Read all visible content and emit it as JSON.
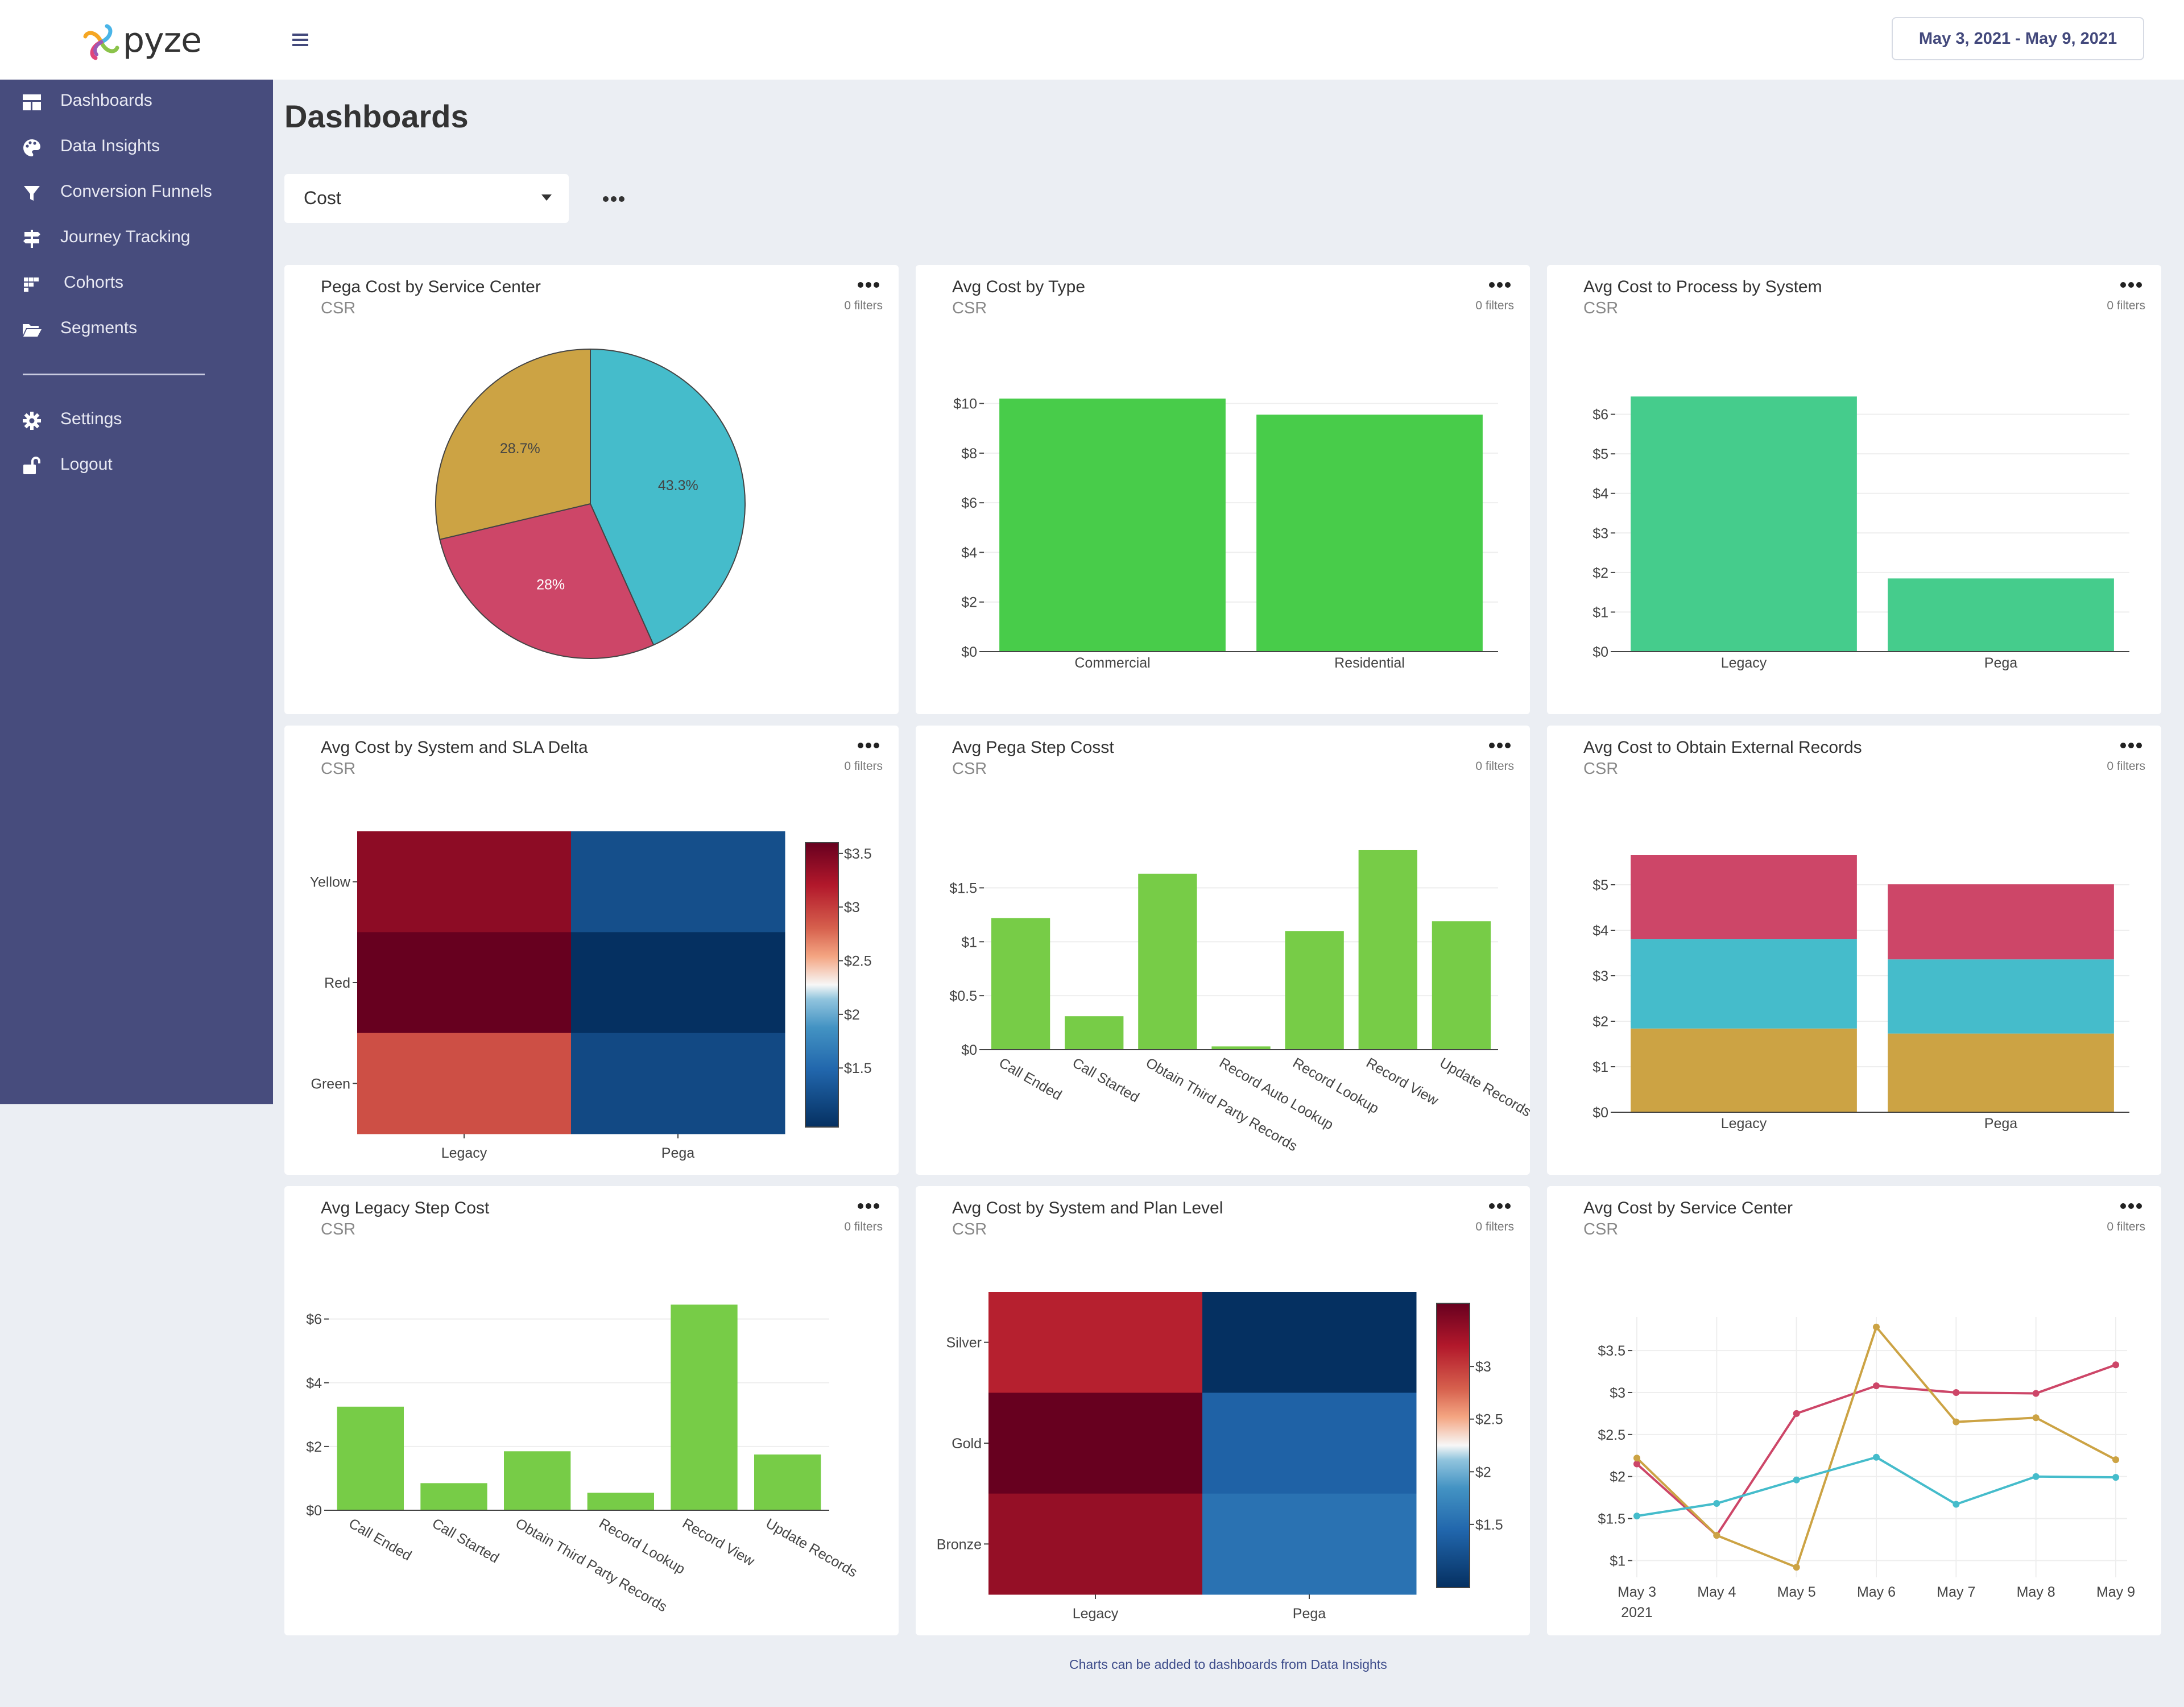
{
  "app": {
    "logo_text": "pyze"
  },
  "sidebar": {
    "items": [
      {
        "label": "Dashboards",
        "icon": "dashboard-icon"
      },
      {
        "label": "Data Insights",
        "icon": "palette-icon"
      },
      {
        "label": "Conversion Funnels",
        "icon": "filter-icon"
      },
      {
        "label": "Journey Tracking",
        "icon": "signpost-icon"
      },
      {
        "label": "Cohorts",
        "icon": "cohorts-icon"
      },
      {
        "label": "Segments",
        "icon": "folder-open-icon"
      }
    ],
    "bottom_items": [
      {
        "label": "Settings",
        "icon": "gear-icon"
      },
      {
        "label": "Logout",
        "icon": "unlock-icon"
      }
    ]
  },
  "header": {
    "date_range": "May 3, 2021 - May 9, 2021"
  },
  "main": {
    "title": "Dashboards",
    "dashboard_select": {
      "value": "Cost"
    }
  },
  "cards": [
    {
      "title": "Pega Cost by Service Center",
      "subtitle": "CSR",
      "filters": "0 filters"
    },
    {
      "title": "Avg Cost by Type",
      "subtitle": "CSR",
      "filters": "0 filters"
    },
    {
      "title": "Avg Cost to Process by System",
      "subtitle": "CSR",
      "filters": "0 filters"
    },
    {
      "title": "Avg Cost by System and SLA Delta",
      "subtitle": "CSR",
      "filters": "0 filters"
    },
    {
      "title": "Avg Pega Step Cosst",
      "subtitle": "CSR",
      "filters": "0 filters"
    },
    {
      "title": "Avg Cost to Obtain External Records",
      "subtitle": "CSR",
      "filters": "0 filters"
    },
    {
      "title": "Avg Legacy Step Cost",
      "subtitle": "CSR",
      "filters": "0 filters"
    },
    {
      "title": "Avg Cost by System and Plan Level",
      "subtitle": "CSR",
      "filters": "0 filters"
    },
    {
      "title": "Avg Cost by Service Center",
      "subtitle": "CSR",
      "filters": "0 filters"
    }
  ],
  "footer_note": "Charts can be added to dashboards from Data Insights",
  "colors": {
    "sidebar": "#474c7d",
    "accent": "#43497c",
    "green": "#48cc4a",
    "teal_green": "#45cc8c",
    "light_green": "#77cc47",
    "pie_teal": "#45bccb",
    "pie_red": "#cd4668",
    "pie_gold": "#cca344"
  },
  "chart_data": [
    {
      "type": "pie",
      "slices": [
        {
          "label": "43.3%",
          "value": 43.3,
          "color": "#45bccb"
        },
        {
          "label": "28%",
          "value": 28.0,
          "color": "#cd4668"
        },
        {
          "label": "28.7%",
          "value": 28.7,
          "color": "#cca344"
        }
      ]
    },
    {
      "type": "bar",
      "categories": [
        "Commercial",
        "Residential"
      ],
      "values": [
        10.2,
        9.55
      ],
      "ylim": [
        0,
        11
      ],
      "yticks": [
        0,
        2,
        4,
        6,
        8,
        10
      ],
      "ytick_labels": [
        "$0",
        "$2",
        "$4",
        "$6",
        "$8",
        "$10"
      ],
      "color": "#48cc4a"
    },
    {
      "type": "bar",
      "categories": [
        "Legacy",
        "Pega"
      ],
      "values": [
        6.45,
        1.85
      ],
      "ylim": [
        0,
        6.9
      ],
      "yticks": [
        0,
        1,
        2,
        3,
        4,
        5,
        6
      ],
      "ytick_labels": [
        "$0",
        "$1",
        "$2",
        "$3",
        "$4",
        "$5",
        "$6"
      ],
      "color": "#45cc8c"
    },
    {
      "type": "heatmap",
      "x": [
        "Legacy",
        "Pega"
      ],
      "y": [
        "Yellow",
        "Red",
        "Green"
      ],
      "z": [
        [
          3.4,
          1.25
        ],
        [
          3.6,
          0.95
        ],
        [
          2.9,
          1.2
        ]
      ],
      "zmin": 0.95,
      "zmax": 3.6,
      "colorbar_ticks": [
        1.5,
        2,
        2.5,
        3,
        3.5
      ],
      "colorbar_labels": [
        "$1.5",
        "$2",
        "$2.5",
        "$3",
        "$3.5"
      ]
    },
    {
      "type": "bar",
      "categories": [
        "Call Ended",
        "Call Started",
        "Obtain Third Party Records",
        "Record Auto Lookup",
        "Record Lookup",
        "Record View",
        "Update Records"
      ],
      "values": [
        1.22,
        0.31,
        1.63,
        0.03,
        1.1,
        1.85,
        1.19
      ],
      "ylim": [
        0,
        1.95
      ],
      "yticks": [
        0,
        0.5,
        1,
        1.5
      ],
      "ytick_labels": [
        "$0",
        "$0.5",
        "$1",
        "$1.5"
      ],
      "color": "#77cc47"
    },
    {
      "type": "bar",
      "stacked": true,
      "categories": [
        "Legacy",
        "Pega"
      ],
      "series": [
        {
          "values": [
            1.84,
            1.73
          ],
          "color": "#cca344"
        },
        {
          "values": [
            1.97,
            1.63
          ],
          "color": "#45bccb"
        },
        {
          "values": [
            1.84,
            1.65
          ],
          "color": "#cd4668"
        }
      ],
      "ylim": [
        0,
        6
      ],
      "yticks": [
        0,
        1,
        2,
        3,
        4,
        5
      ],
      "ytick_labels": [
        "$0",
        "$1",
        "$2",
        "$3",
        "$4",
        "$5"
      ]
    },
    {
      "type": "bar",
      "categories": [
        "Call Ended",
        "Call Started",
        "Obtain Third Party Records",
        "Record Lookup",
        "Record View",
        "Update Records"
      ],
      "values": [
        3.25,
        0.85,
        1.85,
        0.55,
        6.45,
        1.75
      ],
      "ylim": [
        0,
        6.6
      ],
      "yticks": [
        0,
        2,
        4,
        6
      ],
      "ytick_labels": [
        "$0",
        "$2",
        "$4",
        "$6"
      ],
      "color": "#77cc47"
    },
    {
      "type": "heatmap",
      "x": [
        "Legacy",
        "Pega"
      ],
      "y": [
        "Silver",
        "Gold",
        "Bronze"
      ],
      "z": [
        [
          3.15,
          0.9
        ],
        [
          3.6,
          1.4
        ],
        [
          3.35,
          1.55
        ]
      ],
      "zmin": 0.9,
      "zmax": 3.6,
      "colorbar_ticks": [
        1.5,
        2,
        2.5,
        3
      ],
      "colorbar_labels": [
        "$1.5",
        "$2",
        "$2.5",
        "$3"
      ]
    },
    {
      "type": "line",
      "x": [
        "May 3",
        "May 4",
        "May 5",
        "May 6",
        "May 7",
        "May 8",
        "May 9"
      ],
      "x_year_label": "2021",
      "series": [
        {
          "values": [
            2.15,
            1.3,
            2.75,
            3.08,
            3.0,
            2.99,
            3.33
          ],
          "color": "#cd4668"
        },
        {
          "values": [
            2.22,
            1.3,
            0.92,
            3.78,
            2.65,
            2.7,
            2.2
          ],
          "color": "#cca344"
        },
        {
          "values": [
            1.53,
            1.68,
            1.96,
            2.23,
            1.67,
            2.0,
            1.99
          ],
          "color": "#45bccb"
        }
      ],
      "ylim": [
        0.8,
        3.9
      ],
      "yticks": [
        1,
        1.5,
        2,
        2.5,
        3,
        3.5
      ],
      "ytick_labels": [
        "$1",
        "$1.5",
        "$2",
        "$2.5",
        "$3",
        "$3.5"
      ]
    }
  ]
}
